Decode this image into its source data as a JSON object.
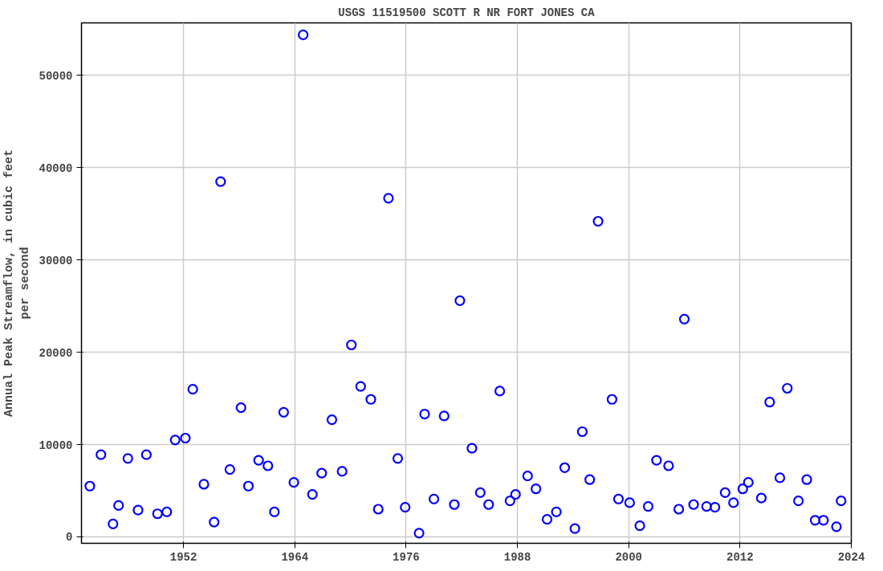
{
  "chart_data": {
    "type": "scatter",
    "title": "USGS 11519500 SCOTT R NR FORT JONES CA",
    "ylabel": "Annual Peak Streamflow, in cubic feet\nper second",
    "x": [
      1941.9,
      1943.1,
      1944.4,
      1945.0,
      1946.0,
      1947.1,
      1948.0,
      1949.2,
      1950.2,
      1951.1,
      1952.2,
      1953.0,
      1954.2,
      1955.3,
      1956.0,
      1957.0,
      1958.2,
      1959.0,
      1960.1,
      1961.1,
      1961.8,
      1962.8,
      1963.9,
      1964.9,
      1965.9,
      1966.9,
      1968.0,
      1969.1,
      1970.1,
      1971.1,
      1972.2,
      1973.0,
      1974.1,
      1975.1,
      1975.9,
      1977.4,
      1978.0,
      1979.0,
      1980.1,
      1981.2,
      1981.8,
      1983.1,
      1984.0,
      1984.9,
      1986.1,
      1987.2,
      1987.8,
      1989.1,
      1990.0,
      1991.2,
      1992.2,
      1993.1,
      1994.2,
      1995.0,
      1995.8,
      1996.7,
      1998.2,
      1998.9,
      2000.1,
      2001.2,
      2002.1,
      2003.0,
      2004.3,
      2005.4,
      2006.0,
      2007.0,
      2008.4,
      2009.3,
      2010.4,
      2011.3,
      2012.3,
      2012.9,
      2014.3,
      2015.2,
      2016.3,
      2017.1,
      2018.3,
      2019.2,
      2020.1,
      2021.0,
      2022.4,
      2022.9
    ],
    "series": [
      {
        "color": "#0000ff",
        "values": [
          5500,
          8900,
          1400,
          3400,
          8500,
          2900,
          8900,
          2500,
          2700,
          10500,
          10700,
          16000,
          5700,
          1600,
          38500,
          7300,
          14000,
          5500,
          8300,
          7700,
          2700,
          13500,
          5900,
          54400,
          4600,
          6900,
          12700,
          7100,
          20800,
          16300,
          14900,
          3000,
          36700,
          8500,
          3200,
          400,
          13300,
          4100,
          13100,
          3500,
          25600,
          9600,
          4800,
          3500,
          15800,
          3900,
          4600,
          6600,
          5200,
          1900,
          2700,
          7500,
          900,
          11400,
          6200,
          34200,
          14900,
          4100,
          3700,
          1200,
          3300,
          8300,
          7700,
          3000,
          23600,
          3500,
          3300,
          3200,
          4800,
          3700,
          5200,
          5900,
          4200,
          14600,
          6400,
          16100,
          3900,
          6200,
          1800,
          1800,
          1100,
          3900
        ]
      }
    ],
    "xlim": [
      1941,
      2024
    ],
    "ylim": [
      -700,
      55700
    ],
    "xticks": [
      1952,
      1964,
      1976,
      1988,
      2000,
      2012,
      2024
    ],
    "yticks": [
      0,
      10000,
      20000,
      30000,
      40000,
      50000
    ],
    "grid": true,
    "marker": "circle"
  }
}
